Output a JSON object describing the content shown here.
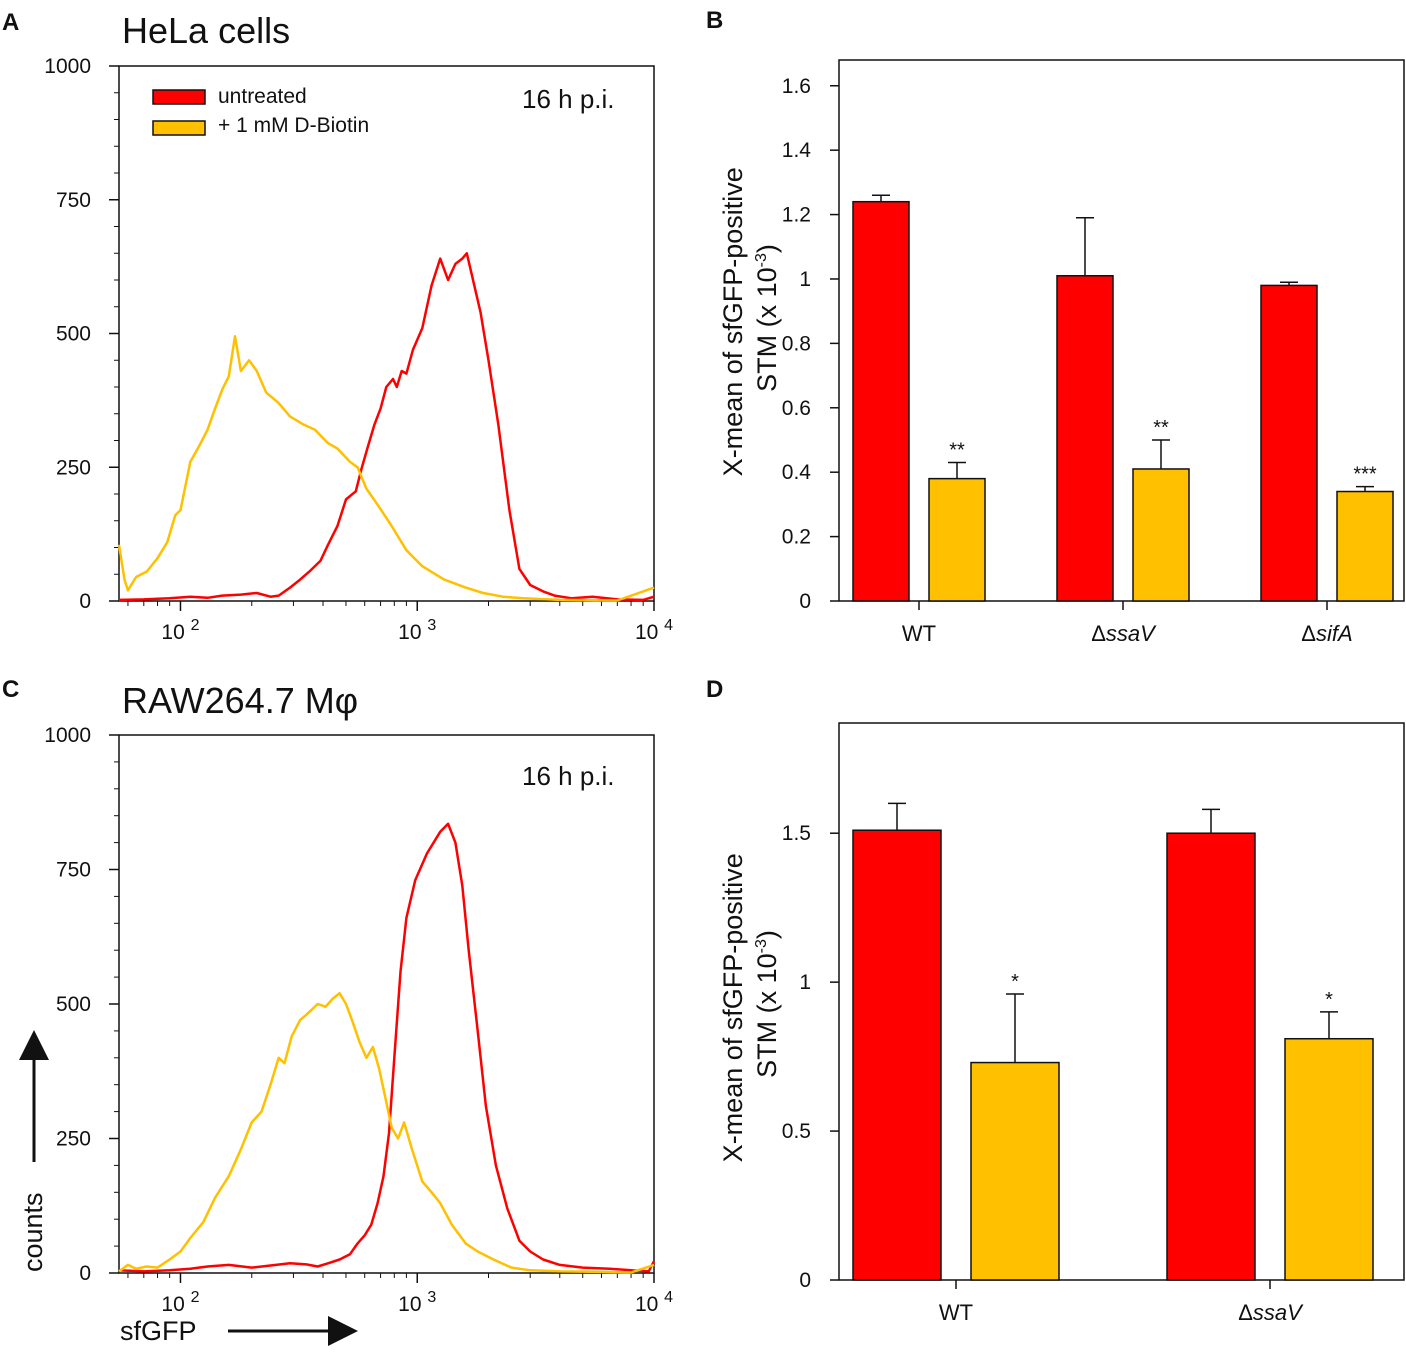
{
  "colors": {
    "untreated": "#ff0000",
    "biotin": "#ffc000",
    "axis": "#111111"
  },
  "panels": {
    "A": {
      "letter": "A",
      "title": "HeLa cells",
      "annotation": "16 h p.i."
    },
    "B": {
      "letter": "B"
    },
    "C": {
      "letter": "C",
      "title": "RAW264.7 Mφ",
      "annotation": "16 h p.i.",
      "ylabel": "counts",
      "xlabel": "sfGFP"
    },
    "D": {
      "letter": "D"
    }
  },
  "legend": {
    "untreated": "untreated",
    "biotin": "+ 1 mM D-Biotin"
  },
  "bar_ylabel": {
    "line1": "X-mean of sfGFP-positive",
    "line2_prefix": "STM (x 10",
    "line2_exp": "-3",
    "line2_suffix": ")"
  },
  "chart_data": [
    {
      "id": "A",
      "type": "line",
      "title": "HeLa cells",
      "xscale": "log",
      "xlim": [
        55,
        10000
      ],
      "ylim": [
        0,
        1000
      ],
      "yticks": [
        "0",
        "250",
        "500",
        "750",
        "1000"
      ],
      "xticks": [
        {
          "base": "10",
          "exp": "2"
        },
        {
          "base": "10",
          "exp": "3"
        },
        {
          "base": "10",
          "exp": "4"
        }
      ],
      "series": [
        {
          "name": "untreated",
          "color_key": "untreated",
          "points": [
            [
              55,
              2
            ],
            [
              70,
              3
            ],
            [
              90,
              5
            ],
            [
              110,
              8
            ],
            [
              130,
              6
            ],
            [
              150,
              10
            ],
            [
              180,
              12
            ],
            [
              210,
              15
            ],
            [
              240,
              8
            ],
            [
              260,
              10
            ],
            [
              290,
              25
            ],
            [
              320,
              40
            ],
            [
              350,
              55
            ],
            [
              390,
              75
            ],
            [
              420,
              105
            ],
            [
              460,
              140
            ],
            [
              500,
              190
            ],
            [
              550,
              205
            ],
            [
              580,
              245
            ],
            [
              620,
              290
            ],
            [
              660,
              330
            ],
            [
              700,
              360
            ],
            [
              740,
              400
            ],
            [
              790,
              415
            ],
            [
              820,
              400
            ],
            [
              860,
              430
            ],
            [
              900,
              425
            ],
            [
              960,
              470
            ],
            [
              1050,
              510
            ],
            [
              1150,
              590
            ],
            [
              1250,
              640
            ],
            [
              1350,
              600
            ],
            [
              1450,
              630
            ],
            [
              1550,
              640
            ],
            [
              1620,
              650
            ],
            [
              1700,
              610
            ],
            [
              1850,
              540
            ],
            [
              2000,
              450
            ],
            [
              2200,
              330
            ],
            [
              2450,
              170
            ],
            [
              2700,
              60
            ],
            [
              3000,
              30
            ],
            [
              3400,
              18
            ],
            [
              3800,
              10
            ],
            [
              4500,
              5
            ],
            [
              5500,
              8
            ],
            [
              7000,
              3
            ],
            [
              9000,
              2
            ],
            [
              10000,
              8
            ]
          ]
        },
        {
          "name": "+ 1 mM D-Biotin",
          "color_key": "biotin",
          "points": [
            [
              55,
              105
            ],
            [
              58,
              40
            ],
            [
              60,
              20
            ],
            [
              65,
              45
            ],
            [
              72,
              55
            ],
            [
              80,
              80
            ],
            [
              88,
              110
            ],
            [
              95,
              160
            ],
            [
              100,
              170
            ],
            [
              110,
              260
            ],
            [
              120,
              290
            ],
            [
              130,
              320
            ],
            [
              140,
              360
            ],
            [
              150,
              395
            ],
            [
              160,
              420
            ],
            [
              170,
              495
            ],
            [
              180,
              430
            ],
            [
              195,
              450
            ],
            [
              210,
              430
            ],
            [
              230,
              390
            ],
            [
              260,
              370
            ],
            [
              290,
              345
            ],
            [
              330,
              330
            ],
            [
              370,
              320
            ],
            [
              420,
              295
            ],
            [
              460,
              285
            ],
            [
              520,
              260
            ],
            [
              560,
              250
            ],
            [
              610,
              210
            ],
            [
              680,
              180
            ],
            [
              780,
              140
            ],
            [
              900,
              95
            ],
            [
              1050,
              65
            ],
            [
              1300,
              40
            ],
            [
              1600,
              25
            ],
            [
              1900,
              15
            ],
            [
              2300,
              8
            ],
            [
              2800,
              5
            ],
            [
              4000,
              2
            ],
            [
              7000,
              1
            ],
            [
              10000,
              25
            ]
          ]
        }
      ]
    },
    {
      "id": "B",
      "type": "bar",
      "categories": [
        "WT",
        "ΔssaV",
        "ΔsifA"
      ],
      "category_italic": [
        false,
        true,
        true
      ],
      "ylim": [
        0,
        1.68
      ],
      "yticks": [
        "0",
        "0.2",
        "0.4",
        "0.6",
        "0.8",
        "1",
        "1.2",
        "1.4",
        "1.6"
      ],
      "ylabel": "X-mean of sfGFP-positive STM (x 10-3)",
      "series": [
        {
          "name": "untreated",
          "color_key": "untreated",
          "values": [
            1.24,
            1.01,
            0.98
          ],
          "errors": [
            0.02,
            0.18,
            0.01
          ],
          "sig": [
            "",
            "",
            ""
          ]
        },
        {
          "name": "+ 1 mM D-Biotin",
          "color_key": "biotin",
          "values": [
            0.38,
            0.41,
            0.34
          ],
          "errors": [
            0.05,
            0.09,
            0.015
          ],
          "sig": [
            "**",
            "**",
            "***"
          ]
        }
      ]
    },
    {
      "id": "C",
      "type": "line",
      "title": "RAW264.7 Mφ",
      "xscale": "log",
      "xlim": [
        55,
        10000
      ],
      "ylim": [
        0,
        1000
      ],
      "yticks": [
        "0",
        "250",
        "500",
        "750",
        "1000"
      ],
      "xticks": [
        {
          "base": "10",
          "exp": "2"
        },
        {
          "base": "10",
          "exp": "3"
        },
        {
          "base": "10",
          "exp": "4"
        }
      ],
      "xlabel": "sfGFP",
      "ylabel": "counts",
      "series": [
        {
          "name": "untreated",
          "color_key": "untreated",
          "points": [
            [
              55,
              5
            ],
            [
              70,
              3
            ],
            [
              90,
              5
            ],
            [
              110,
              8
            ],
            [
              130,
              12
            ],
            [
              160,
              15
            ],
            [
              200,
              10
            ],
            [
              240,
              14
            ],
            [
              290,
              18
            ],
            [
              340,
              16
            ],
            [
              380,
              12
            ],
            [
              420,
              18
            ],
            [
              470,
              25
            ],
            [
              520,
              35
            ],
            [
              560,
              55
            ],
            [
              600,
              70
            ],
            [
              640,
              90
            ],
            [
              680,
              130
            ],
            [
              720,
              180
            ],
            [
              760,
              260
            ],
            [
              800,
              400
            ],
            [
              850,
              560
            ],
            [
              900,
              660
            ],
            [
              980,
              730
            ],
            [
              1100,
              780
            ],
            [
              1250,
              820
            ],
            [
              1350,
              835
            ],
            [
              1450,
              800
            ],
            [
              1550,
              720
            ],
            [
              1650,
              600
            ],
            [
              1800,
              450
            ],
            [
              1950,
              310
            ],
            [
              2150,
              200
            ],
            [
              2400,
              120
            ],
            [
              2700,
              60
            ],
            [
              3000,
              40
            ],
            [
              3400,
              25
            ],
            [
              4000,
              15
            ],
            [
              5000,
              10
            ],
            [
              6500,
              8
            ],
            [
              8000,
              5
            ],
            [
              9500,
              3
            ],
            [
              10000,
              22
            ]
          ]
        },
        {
          "name": "+ 1 mM D-Biotin",
          "color_key": "biotin",
          "points": [
            [
              55,
              3
            ],
            [
              60,
              15
            ],
            [
              65,
              8
            ],
            [
              72,
              12
            ],
            [
              80,
              10
            ],
            [
              90,
              25
            ],
            [
              100,
              40
            ],
            [
              110,
              65
            ],
            [
              125,
              95
            ],
            [
              140,
              140
            ],
            [
              160,
              180
            ],
            [
              180,
              230
            ],
            [
              200,
              280
            ],
            [
              220,
              300
            ],
            [
              240,
              350
            ],
            [
              260,
              400
            ],
            [
              275,
              390
            ],
            [
              295,
              440
            ],
            [
              320,
              470
            ],
            [
              340,
              480
            ],
            [
              380,
              500
            ],
            [
              410,
              495
            ],
            [
              440,
              510
            ],
            [
              470,
              520
            ],
            [
              500,
              500
            ],
            [
              530,
              470
            ],
            [
              570,
              430
            ],
            [
              610,
              400
            ],
            [
              650,
              420
            ],
            [
              690,
              380
            ],
            [
              730,
              330
            ],
            [
              780,
              270
            ],
            [
              830,
              250
            ],
            [
              880,
              280
            ],
            [
              950,
              230
            ],
            [
              1050,
              170
            ],
            [
              1150,
              150
            ],
            [
              1250,
              130
            ],
            [
              1400,
              90
            ],
            [
              1600,
              55
            ],
            [
              1800,
              40
            ],
            [
              2100,
              25
            ],
            [
              2500,
              10
            ],
            [
              3000,
              5
            ],
            [
              4000,
              3
            ],
            [
              6000,
              2
            ],
            [
              8000,
              1
            ],
            [
              10000,
              15
            ]
          ]
        }
      ]
    },
    {
      "id": "D",
      "type": "bar",
      "categories": [
        "WT",
        "ΔssaV"
      ],
      "category_italic": [
        false,
        true
      ],
      "ylim": [
        0,
        1.87
      ],
      "yticks": [
        "0",
        "0.5",
        "1",
        "1.5"
      ],
      "ylabel": "X-mean of sfGFP-positive STM (x 10-3)",
      "series": [
        {
          "name": "untreated",
          "color_key": "untreated",
          "values": [
            1.51,
            1.5
          ],
          "errors": [
            0.09,
            0.08
          ],
          "sig": [
            "",
            ""
          ]
        },
        {
          "name": "+ 1 mM D-Biotin",
          "color_key": "biotin",
          "values": [
            0.73,
            0.81
          ],
          "errors": [
            0.23,
            0.09
          ],
          "sig": [
            "*",
            "*"
          ]
        }
      ]
    }
  ]
}
